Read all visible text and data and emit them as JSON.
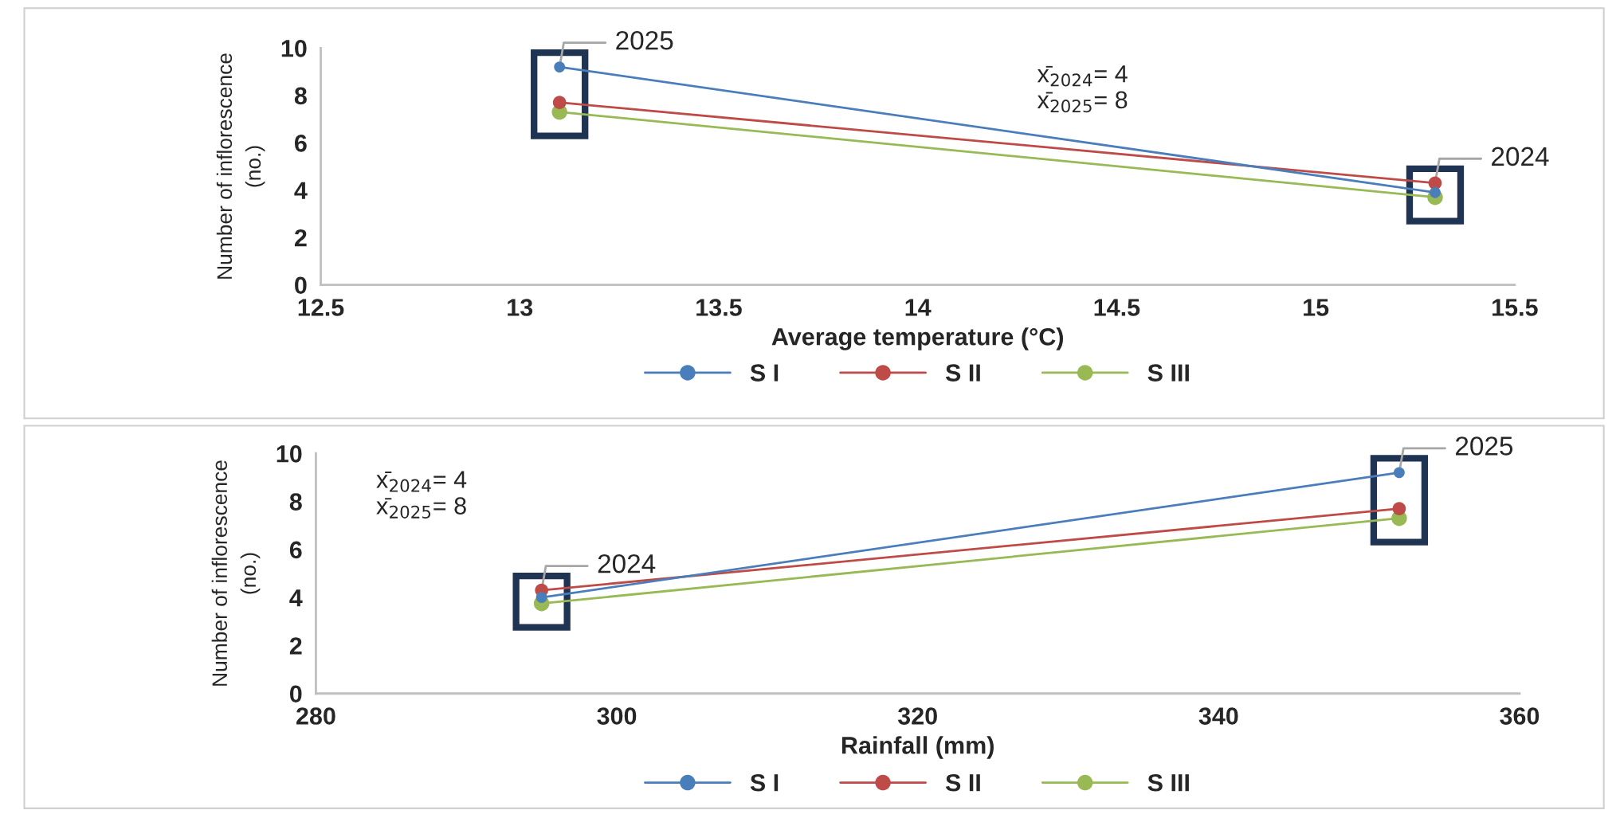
{
  "chart_data": [
    {
      "type": "line",
      "xlabel": "Average temperature (°C)",
      "ylabel": "Number of inflorescence\n(no.)",
      "xlim": [
        12.5,
        15.5
      ],
      "xticks": [
        12.5,
        13,
        13.5,
        14,
        14.5,
        15,
        15.5
      ],
      "ylim": [
        0,
        10
      ],
      "yticks": [
        0,
        2,
        4,
        6,
        8,
        10
      ],
      "grid": false,
      "legend": "bottom",
      "marker": "circle",
      "line_style": "solid",
      "x": [
        13.1,
        15.3
      ],
      "series": [
        {
          "name": "S I",
          "color": "#4a7ebb",
          "values": [
            9.2,
            3.9
          ]
        },
        {
          "name": "S II",
          "color": "#be4b48",
          "values": [
            7.7,
            4.3
          ]
        },
        {
          "name": "S III",
          "color": "#98b954",
          "values": [
            7.3,
            3.7
          ]
        }
      ],
      "annotations": [
        {
          "text": "2025",
          "x": 13.1,
          "y": 9.2
        },
        {
          "text": "2024",
          "x": 15.3,
          "y": 4.3
        },
        "x̄$_{2024}$= 4",
        "x̄$_{2025}$= 8"
      ]
    },
    {
      "type": "line",
      "xlabel": "Rainfall (mm)",
      "ylabel": "Number of inflorescence\n(no.)",
      "xlim": [
        280,
        360
      ],
      "xticks": [
        280,
        300,
        320,
        340,
        360
      ],
      "ylim": [
        0,
        10
      ],
      "yticks": [
        0,
        2,
        4,
        6,
        8,
        10
      ],
      "grid": false,
      "legend": "bottom",
      "marker": "circle",
      "line_style": "solid",
      "x": [
        295,
        352
      ],
      "series": [
        {
          "name": "S I",
          "color": "#4a7ebb",
          "values": [
            4.0,
            9.2
          ]
        },
        {
          "name": "S II",
          "color": "#be4b48",
          "values": [
            4.3,
            7.7
          ]
        },
        {
          "name": "S III",
          "color": "#98b954",
          "values": [
            3.75,
            7.3
          ]
        }
      ],
      "annotations": [
        {
          "text": "2024",
          "x": 295,
          "y": 4.3
        },
        {
          "text": "2025",
          "x": 352,
          "y": 9.2
        },
        "x̄$_{2024}$= 4",
        "x̄$_{2025}$= 8"
      ]
    }
  ]
}
